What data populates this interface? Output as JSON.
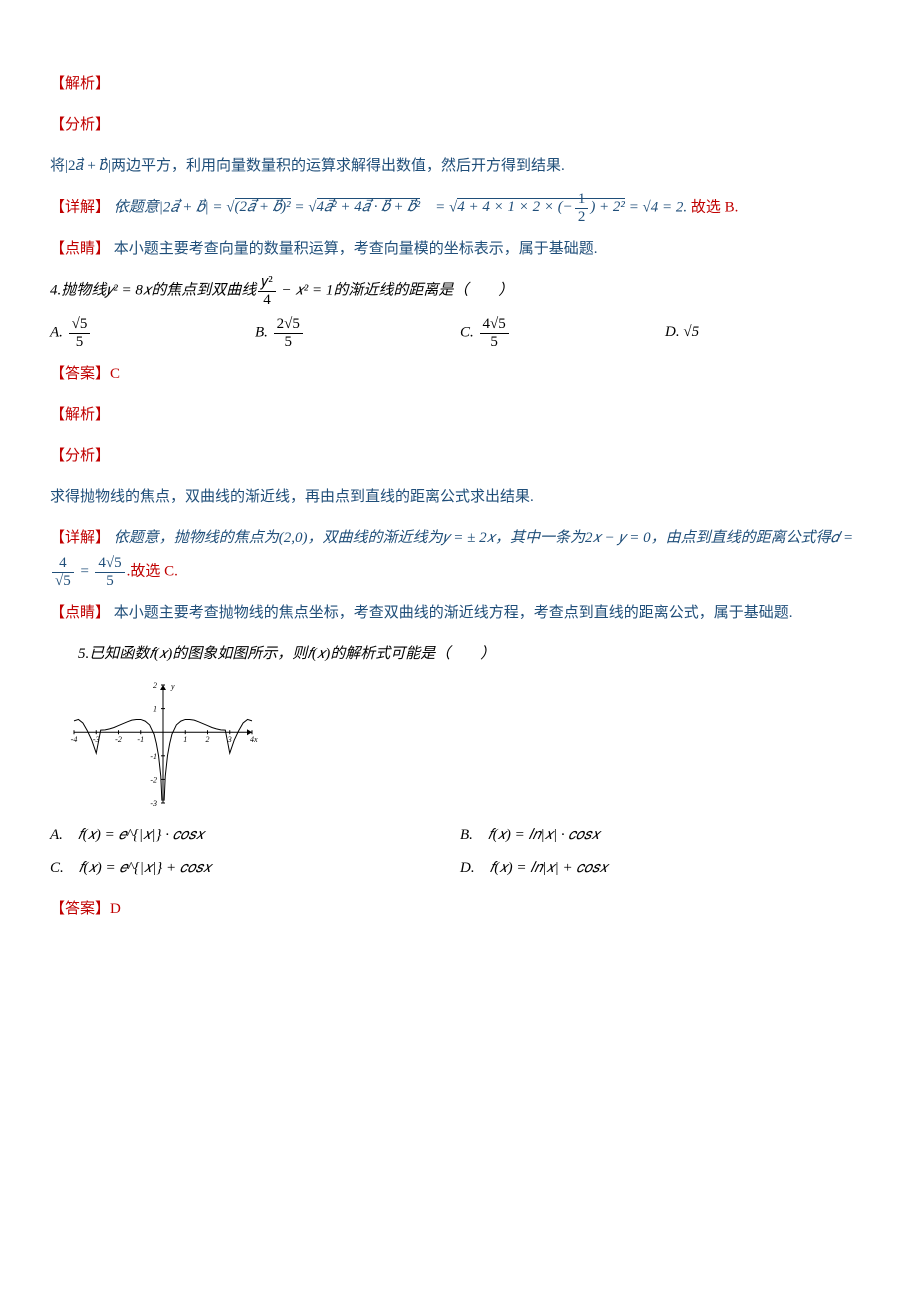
{
  "q3": {
    "labels": {
      "jiexi": "【解析】",
      "fenxi": "【分析】",
      "xiangjie_label": "【详解】",
      "dianjing_label": "【点睛】"
    },
    "analysis": "将|2𝑎⃗ + 𝑏⃗|两边平方，利用向量数量积的运算求解得出数值，然后开方得到结果.",
    "detail_pre": "依题意|2𝑎⃗ + 𝑏⃗| = ",
    "detail_mid": " = √4 = 2.",
    "detail_post": "故选 B.",
    "dianjing": "本小题主要考查向量的数量积运算，考查向量模的坐标表示，属于基础题."
  },
  "q4": {
    "stem_pre": "4.抛物线𝑦² = 8𝑥的焦点到双曲线",
    "stem_post": " − 𝑥² = 1的渐近线的距离是（　　）",
    "options": {
      "A": "A.  ",
      "B": "B.  ",
      "C": "C.  ",
      "D": "D.  √5"
    },
    "frac_values": {
      "A_num": "√5",
      "A_den": "5",
      "B_num": "2√5",
      "B_den": "5",
      "C_num": "4√5",
      "C_den": "5",
      "stem_num": "𝑦²",
      "stem_den": "4"
    },
    "answer_label": "【答案】",
    "answer": "C",
    "jiexi": "【解析】",
    "fenxi": "【分析】",
    "analysis": "求得抛物线的焦点，双曲线的渐近线，再由点到直线的距离公式求出结果.",
    "detail_label": "【详解】",
    "detail_1": "依题意，抛物线的焦点为(2,0)，双曲线的渐近线为𝑦 = ± 2𝑥，其中一条为2𝑥 − 𝑦 = 0，由点到直线的距离公式得𝑑 = ",
    "detail_frac1_num": "4",
    "detail_frac1_den": "√5",
    "detail_eq": " = ",
    "detail_frac2_num": "4√5",
    "detail_frac2_den": "5",
    "detail_2": ".故选 C.",
    "dianjing_label": "【点睛】",
    "dianjing": "本小题主要考查抛物线的焦点坐标，考查双曲线的渐近线方程，考查点到直线的距离公式，属于基础题."
  },
  "q5": {
    "stem": "5.已知函数𝑓(𝑥)的图象如图所示，则𝑓(𝑥)的解析式可能是（　　）",
    "options": {
      "A": "A.　𝑓(𝑥) = 𝑒^{|𝑥|} · 𝑐𝑜𝑠𝑥",
      "B": "B.　𝑓(𝑥) = 𝑙𝑛|𝑥| · 𝑐𝑜𝑠𝑥",
      "C": "C.　𝑓(𝑥) = 𝑒^{|𝑥|} + 𝑐𝑜𝑠𝑥",
      "D": "D.　𝑓(𝑥) = 𝑙𝑛|𝑥| + 𝑐𝑜𝑠𝑥"
    },
    "answer_label": "【答案】",
    "answer": "D",
    "graph": {
      "width": 190,
      "height": 130,
      "stroke": "#000000",
      "stroke_width": 1,
      "x_range": [
        -4,
        4
      ],
      "y_range": [
        -3,
        2
      ],
      "x_ticks": [
        -4,
        -3,
        -2,
        -1,
        1,
        2,
        3,
        4
      ],
      "y_ticks": [
        -3,
        -2,
        -1,
        1,
        2
      ],
      "curve_points": [
        [
          -4.0,
          0.48
        ],
        [
          -3.8,
          0.54
        ],
        [
          -3.6,
          0.39
        ],
        [
          -3.4,
          0.06
        ],
        [
          -3.2,
          -0.34
        ],
        [
          -3.0,
          -0.89
        ],
        [
          -2.8,
          0.09
        ],
        [
          -2.6,
          0.1
        ],
        [
          -2.4,
          0.14
        ],
        [
          -2.2,
          0.2
        ],
        [
          -2.0,
          0.28
        ],
        [
          -1.8,
          0.36
        ],
        [
          -1.6,
          0.44
        ],
        [
          -1.4,
          0.51
        ],
        [
          -1.2,
          0.54
        ],
        [
          -1.0,
          0.54
        ],
        [
          -0.8,
          0.47
        ],
        [
          -0.6,
          0.31
        ],
        [
          -0.4,
          -0.09
        ],
        [
          -0.3,
          -0.48
        ],
        [
          -0.2,
          -1.0
        ],
        [
          -0.1,
          -1.87
        ],
        [
          -0.05,
          -2.9
        ],
        [
          0.05,
          -2.9
        ],
        [
          0.1,
          -1.87
        ],
        [
          0.2,
          -1.0
        ],
        [
          0.3,
          -0.48
        ],
        [
          0.4,
          -0.09
        ],
        [
          0.6,
          0.31
        ],
        [
          0.8,
          0.47
        ],
        [
          1.0,
          0.54
        ],
        [
          1.2,
          0.54
        ],
        [
          1.4,
          0.51
        ],
        [
          1.6,
          0.44
        ],
        [
          1.8,
          0.36
        ],
        [
          2.0,
          0.28
        ],
        [
          2.2,
          0.2
        ],
        [
          2.4,
          0.14
        ],
        [
          2.6,
          0.1
        ],
        [
          2.8,
          0.09
        ],
        [
          3.0,
          -0.89
        ],
        [
          3.2,
          -0.34
        ],
        [
          3.4,
          0.06
        ],
        [
          3.6,
          0.39
        ],
        [
          3.8,
          0.54
        ],
        [
          4.0,
          0.48
        ]
      ]
    }
  },
  "colors": {
    "red": "#c00000",
    "blue": "#1f4e79",
    "black": "#000000"
  }
}
